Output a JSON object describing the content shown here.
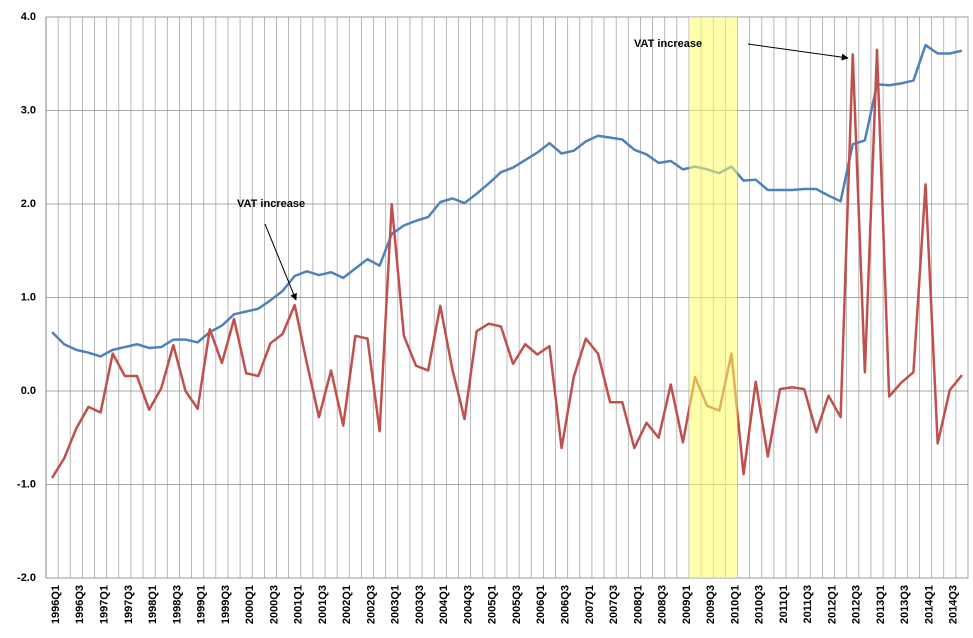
{
  "chart_data": {
    "type": "line",
    "categories": [
      "1996Q1",
      null,
      "1996Q3",
      null,
      "1997Q1",
      null,
      "1997Q3",
      null,
      "1998Q1",
      null,
      "1998Q3",
      null,
      "1999Q1",
      null,
      "1999Q3",
      null,
      "2000Q1",
      null,
      "2000Q3",
      null,
      "2001Q1",
      null,
      "2001Q3",
      null,
      "2002Q1",
      null,
      "2002Q3",
      null,
      "2003Q1",
      null,
      "2003Q3",
      null,
      "2004Q1",
      null,
      "2004Q3",
      null,
      "2005Q1",
      null,
      "2005Q3",
      null,
      "2006Q1",
      null,
      "2006Q3",
      null,
      "2007Q1",
      null,
      "2007Q3",
      null,
      "2008Q1",
      null,
      "2008Q3",
      null,
      "2009Q1",
      null,
      "2009Q3",
      null,
      "2010Q1",
      null,
      "2010Q3",
      null,
      "2011Q1",
      null,
      "2011Q3",
      null,
      "2012Q1",
      null,
      "2012Q3",
      null,
      "2013Q1",
      null,
      "2013Q3",
      null,
      "2014Q1",
      null,
      "2014Q3",
      null
    ],
    "series": [
      {
        "color": "#4f81bd",
        "values": [
          0.63,
          0.5,
          0.44,
          0.41,
          0.37,
          0.44,
          0.47,
          0.5,
          0.46,
          0.47,
          0.55,
          0.55,
          0.52,
          0.63,
          0.7,
          0.82,
          0.85,
          0.88,
          0.97,
          1.07,
          1.23,
          1.28,
          1.24,
          1.27,
          1.21,
          1.31,
          1.41,
          1.34,
          1.68,
          1.77,
          1.82,
          1.86,
          2.02,
          2.06,
          2.01,
          2.11,
          2.22,
          2.34,
          2.39,
          2.47,
          2.55,
          2.65,
          2.54,
          2.57,
          2.67,
          2.73,
          2.71,
          2.69,
          2.58,
          2.53,
          2.44,
          2.46,
          2.37,
          2.4,
          2.37,
          2.33,
          2.4,
          2.25,
          2.26,
          2.15,
          2.15,
          2.15,
          2.16,
          2.16,
          2.09,
          2.03,
          2.64,
          2.68,
          3.28,
          3.27,
          3.29,
          3.32,
          3.7,
          3.61,
          3.61,
          3.64
        ]
      },
      {
        "color": "#c0504d",
        "values": [
          -0.93,
          -0.72,
          -0.4,
          -0.17,
          -0.23,
          0.4,
          0.16,
          0.16,
          -0.2,
          0.03,
          0.49,
          0.0,
          -0.19,
          0.66,
          0.3,
          0.77,
          0.19,
          0.16,
          0.51,
          0.61,
          0.92,
          0.3,
          -0.28,
          0.22,
          -0.37,
          0.59,
          0.56,
          -0.43,
          2.0,
          0.59,
          0.27,
          0.22,
          0.91,
          0.23,
          -0.3,
          0.64,
          0.72,
          0.69,
          0.29,
          0.5,
          0.39,
          0.48,
          -0.61,
          0.15,
          0.56,
          0.4,
          -0.12,
          -0.12,
          -0.61,
          -0.34,
          -0.5,
          0.07,
          -0.55,
          0.15,
          -0.16,
          -0.21,
          0.4,
          -0.89,
          0.1,
          -0.7,
          0.02,
          0.04,
          0.02,
          -0.44,
          -0.05,
          -0.28,
          3.6,
          0.2,
          3.65,
          -0.06,
          0.09,
          0.2,
          2.21,
          -0.56,
          0.01,
          0.17
        ]
      }
    ],
    "ylim": [
      -2,
      4
    ],
    "yticks": [
      {
        "value": -2,
        "label": "-2.0"
      },
      {
        "value": -1,
        "label": "-1.0"
      },
      {
        "value": 0,
        "label": "0.0"
      },
      {
        "value": 1,
        "label": "1.0"
      },
      {
        "value": 2,
        "label": "2.0"
      },
      {
        "value": 3,
        "label": "3.0"
      },
      {
        "value": 4,
        "label": "4.0"
      }
    ],
    "grid": true,
    "highlight_index_range": [
      53,
      56
    ],
    "highlight_color": "#ffff66",
    "annotations": [
      "VAT increase",
      "VAT increase"
    ]
  }
}
